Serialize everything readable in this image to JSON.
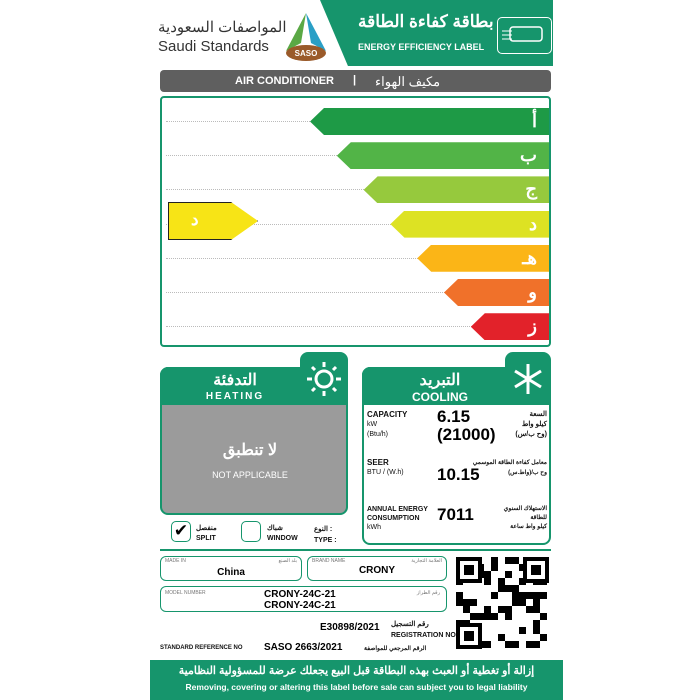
{
  "header": {
    "saso_ar": "المواصفات السعودية",
    "saso_en": "Saudi Standards",
    "logo_text": "SASO",
    "title_ar": "بطاقة كفاءة الطاقة",
    "title_en": "ENERGY EFFICIENCY LABEL",
    "icon": "air-conditioner-icon"
  },
  "product": {
    "en": "AIR CONDITIONER",
    "sep": "|",
    "ar": "مكيف الهواء"
  },
  "scale": {
    "classes": [
      {
        "label": "أ",
        "color": "#1e9a46"
      },
      {
        "label": "ب",
        "color": "#52b447"
      },
      {
        "label": "ج",
        "color": "#96c93d"
      },
      {
        "label": "د",
        "color": "#dde223"
      },
      {
        "label": "هـ",
        "color": "#fbb517"
      },
      {
        "label": "و",
        "color": "#f0712a"
      },
      {
        "label": "ز",
        "color": "#e2222a"
      }
    ],
    "rating": "د",
    "rating_color": "#f7e416"
  },
  "heating": {
    "title_ar": "التدفئة",
    "title_en": "HEATING",
    "na_ar": "لا تنطبق",
    "na_en": "NOT APPLICABLE",
    "icon": "sun-icon"
  },
  "cooling": {
    "title_ar": "التبريد",
    "title_en": "COOLING",
    "icon": "snowflake-icon",
    "capacity": {
      "en1": "CAPACITY",
      "en2": "kW",
      "en3": "(Btu/h)",
      "v1": "6.15",
      "v2": "(21000)",
      "ar1": "السعة",
      "ar2": "كيلو واط",
      "ar3": "(وح ب/س)"
    },
    "seer": {
      "en1": "SEER",
      "en2": "BTU / (W.h)",
      "v": "10.15",
      "ar1": "معامل كفاءة الطاقة الموسمي",
      "ar2": "وح ب/(واط.س)"
    },
    "annual": {
      "en1": "ANNUAL ENERGY",
      "en2": "CONSUMPTION",
      "en3": "kWh",
      "v": "7011",
      "ar1": "الاستهلاك السنوي",
      "ar2": "للطاقة",
      "ar3": "كيلو واط ساعة"
    }
  },
  "type": {
    "split_ar": "منفصل",
    "split_en": "SPLIT",
    "split_checked": true,
    "window_ar": "شباك",
    "window_en": "WINDOW",
    "type_ar": "النوع :",
    "type_en": "TYPE :"
  },
  "info": {
    "made_in_en": "MADE IN",
    "made_in_ar": "بلد الصنع",
    "made_in": "China",
    "brand_en": "BRAND NAME",
    "brand_ar": "العلامة التجارية",
    "brand": "CRONY",
    "model_en": "MODEL NUMBER",
    "model_ar": "رقم الطراز",
    "model1": "CRONY-24C-21",
    "model2": "CRONY-24C-21",
    "reg": "E30898/2021",
    "reg_ar": "رقم التسجيل",
    "reg_en": "REGISTRATION NO",
    "std_en": "STANDARD REFERENCE NO",
    "std": "SASO 2663/2021",
    "std_ar": "الرقم المرجعي للمواصفة"
  },
  "footer": {
    "ar": "إزالة أو تغطية أو العبث بهذه البطاقة قبل البيع يجعلك عرضة للمسؤولية النظامية",
    "en": "Removing, covering or altering this label before sale can subject you to legal liability"
  }
}
